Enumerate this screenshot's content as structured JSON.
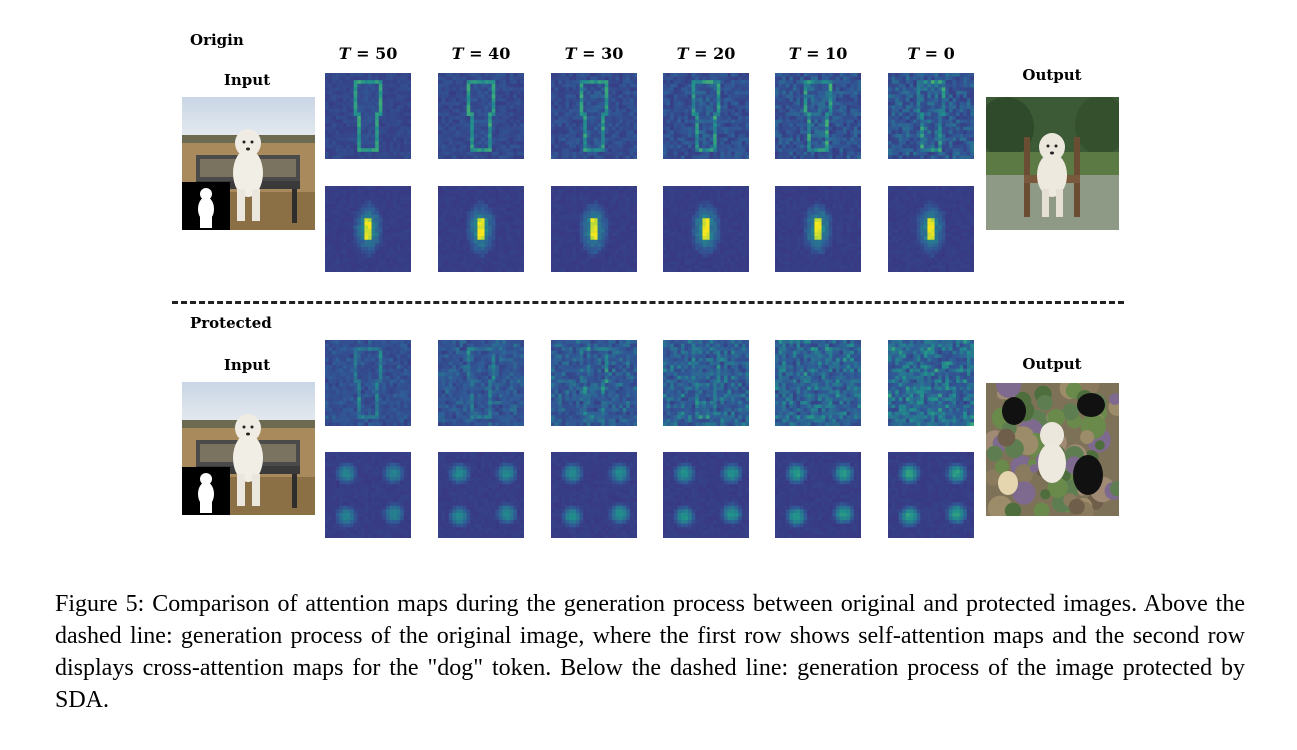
{
  "sections": {
    "origin": {
      "label": "Origin",
      "input_label": "Input",
      "output_label": "Output"
    },
    "protected": {
      "label": "Protected",
      "input_label": "Input",
      "output_label": "Output"
    }
  },
  "timesteps": [
    {
      "var": "T",
      "value": "50"
    },
    {
      "var": "T",
      "value": "40"
    },
    {
      "var": "T",
      "value": "30"
    },
    {
      "var": "T",
      "value": "20"
    },
    {
      "var": "T",
      "value": "10"
    },
    {
      "var": "T",
      "value": "0"
    }
  ],
  "colors": {
    "map_low": "#3a2a7c",
    "map_mid": "#2a788e",
    "map_high": "#f5e61e",
    "green": "#4ec36b"
  },
  "caption": "Figure 5: Comparison of attention maps during the generation process between original and protected images. Above the dashed line: generation process of the original image, where the first row shows self-attention maps and the second row displays cross-attention maps for the \"dog\" token. Below the dashed line: generation process of the image protected by SDA."
}
